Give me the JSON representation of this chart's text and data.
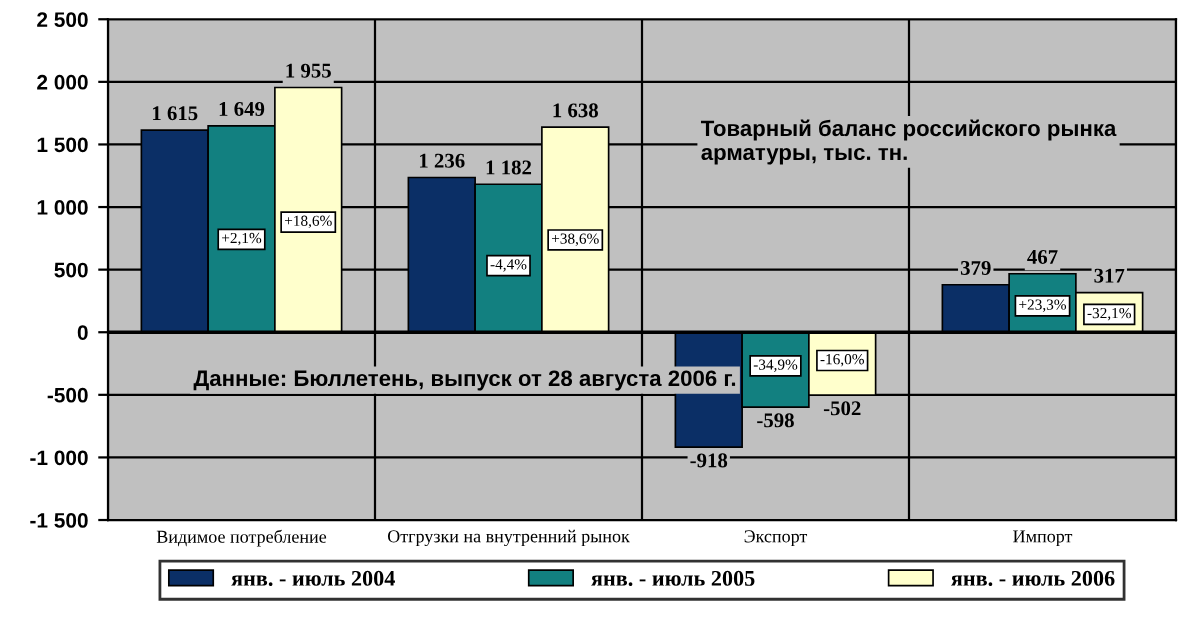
{
  "chart_data": {
    "type": "bar",
    "title": "Товарный баланс российского рынка арматуры, тыс. тн.",
    "categories": [
      "Видимое потребление",
      "Отгрузки на внутренний рынок",
      "Экспорт",
      "Импорт"
    ],
    "series": [
      {
        "name": "янв. - июль 2004",
        "color": "#0b2f66",
        "values": [
          1615,
          1236,
          -918,
          379
        ]
      },
      {
        "name": "янв. - июль 2005",
        "color": "#128080",
        "values": [
          1649,
          1182,
          -598,
          467
        ]
      },
      {
        "name": "янв. - июль 2006",
        "color": "#ffffcc",
        "values": [
          1955,
          1638,
          -502,
          317
        ]
      }
    ],
    "data_labels": true,
    "ylim": [
      -1500,
      2500
    ],
    "yticks": [
      {
        "value": -1500,
        "label": "-1 500"
      },
      {
        "value": -1000,
        "label": "-1 000"
      },
      -500,
      0,
      500,
      {
        "value": 1000,
        "label": "1 000"
      },
      {
        "value": 1500,
        "label": "1 500"
      },
      {
        "value": 2000,
        "label": "2 000"
      },
      {
        "value": 2500,
        "label": "2 500"
      }
    ],
    "grid": true,
    "legend": "bottom",
    "annotations": [
      "+2,1%",
      "+18,6%",
      "-4,4%",
      "+38,6%",
      "-34,9%",
      "-16,0%",
      "+23,3%",
      "-32,1%",
      "Данные: Бюллетень, выпуск от 28 августа 2006 г."
    ]
  }
}
